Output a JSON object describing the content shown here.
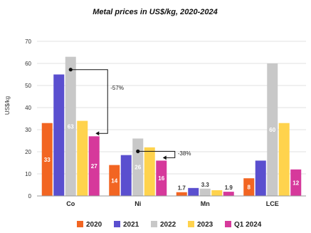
{
  "chart_data": {
    "type": "bar",
    "title": "Metal prices in US$/kg, 2020-2024",
    "ylabel": "US$/kg",
    "xlabel": "",
    "ylim": [
      0,
      70
    ],
    "yticks": [
      "0",
      "10",
      "20",
      "30",
      "40",
      "50",
      "60",
      "70"
    ],
    "grid": true,
    "legend_position": "bottom",
    "categories": [
      "Co",
      "Ni",
      "Mn",
      "LCE"
    ],
    "series": [
      {
        "name": "2020",
        "color": "#f26522",
        "values": [
          33,
          14,
          1.7,
          8
        ],
        "labels": [
          "33",
          "14",
          "1.7",
          "8"
        ]
      },
      {
        "name": "2021",
        "color": "#5a4fcf",
        "values": [
          55,
          18.5,
          3.6,
          16
        ],
        "labels": [
          "",
          "",
          "",
          ""
        ]
      },
      {
        "name": "2022",
        "color": "#c8c8c8",
        "values": [
          63,
          26,
          3.3,
          60
        ],
        "labels": [
          "63",
          "26",
          "3.3",
          "60"
        ]
      },
      {
        "name": "2023",
        "color": "#ffd34d",
        "values": [
          34,
          22,
          2.6,
          33
        ],
        "labels": [
          "",
          "",
          "",
          ""
        ]
      },
      {
        "name": "Q1 2024",
        "color": "#d6399b",
        "values": [
          27,
          16,
          1.9,
          12
        ],
        "labels": [
          "27",
          "16",
          "1.9",
          "12"
        ]
      }
    ],
    "annotations": [
      {
        "text": "-57%",
        "category": "Co",
        "from_series": "2022",
        "to_series": "Q1 2024"
      },
      {
        "text": "-38%",
        "category": "Ni",
        "from_series": "2022",
        "to_series": "Q1 2024"
      }
    ]
  }
}
